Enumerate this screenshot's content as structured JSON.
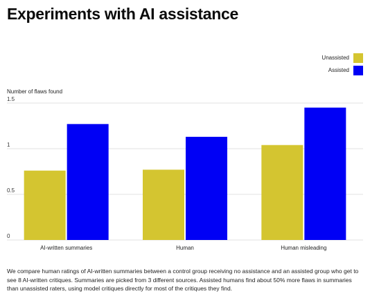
{
  "chart_data": {
    "type": "bar",
    "title": "Experiments with AI assistance",
    "ylabel": "Number of flaws found",
    "xlabel": "",
    "categories": [
      "AI-written summaries",
      "Human",
      "Human misleading"
    ],
    "series": [
      {
        "name": "Unassisted",
        "color": "#d4c530",
        "values": [
          0.76,
          0.77,
          1.04
        ]
      },
      {
        "name": "Assisted",
        "color": "#0000f5",
        "values": [
          1.27,
          1.13,
          1.45
        ]
      }
    ],
    "ylim": [
      0,
      1.5
    ],
    "yticks": [
      0,
      0.5,
      1,
      1.5
    ],
    "ytick_labels": [
      "0",
      "0.5",
      "1",
      "1.5"
    ],
    "grid": true,
    "legend_position": "top-right"
  },
  "description": "We compare human ratings of AI-written summaries between a control group receiving no assistance and an assisted group who get to see 8 AI-written critiques. Summaries are picked from 3 different sources. Assisted humans find about 50% more flaws in summaries than unassisted raters, using model critiques directly for most of the critiques they find."
}
